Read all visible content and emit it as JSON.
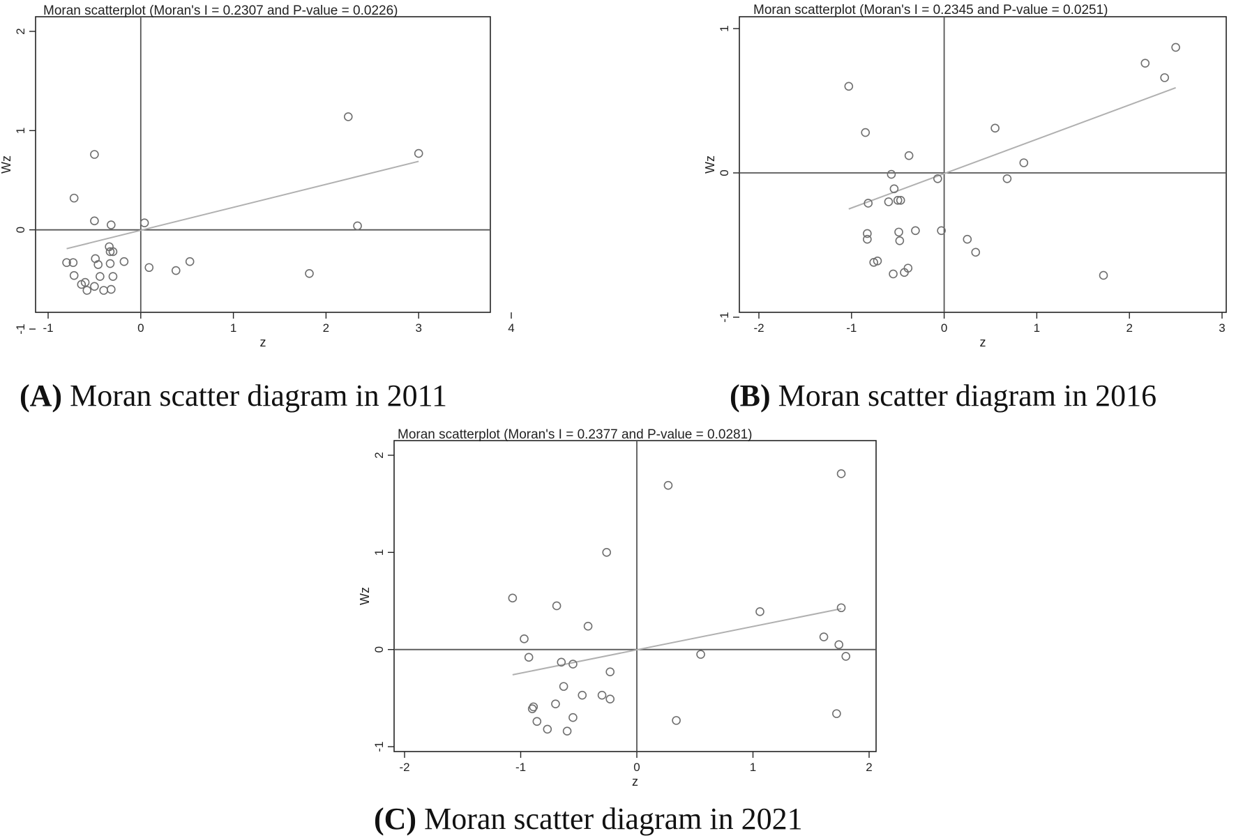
{
  "chart_data": [
    {
      "type": "scatter",
      "title": "Moran scatterplot (Moran's I = 0.2307 and P-value = 0.0226)",
      "xlabel": "z",
      "ylabel": "Wz",
      "xlim": [
        -1,
        4
      ],
      "ylim": [
        -1,
        2
      ],
      "xticks": [
        -1,
        0,
        1,
        2,
        3,
        4
      ],
      "yticks": [
        -1,
        0,
        1,
        2
      ],
      "xtick_labels": [
        "-1",
        "0",
        "1",
        "2",
        "3",
        "4"
      ],
      "ytick_labels": [
        "-1",
        "0",
        "1",
        "2"
      ],
      "grid": false,
      "fit_line": {
        "x": [
          -0.8,
          3.0
        ],
        "y": [
          -0.19,
          0.69
        ]
      },
      "points": [
        {
          "x": -0.8,
          "y": -0.33
        },
        {
          "x": -0.73,
          "y": -0.33
        },
        {
          "x": -0.72,
          "y": 0.32
        },
        {
          "x": -0.72,
          "y": -0.46
        },
        {
          "x": -0.64,
          "y": -0.55
        },
        {
          "x": -0.6,
          "y": -0.53
        },
        {
          "x": -0.58,
          "y": -0.61
        },
        {
          "x": -0.5,
          "y": 0.76
        },
        {
          "x": -0.5,
          "y": 0.09
        },
        {
          "x": -0.49,
          "y": -0.29
        },
        {
          "x": -0.5,
          "y": -0.57
        },
        {
          "x": -0.46,
          "y": -0.35
        },
        {
          "x": -0.44,
          "y": -0.47
        },
        {
          "x": -0.4,
          "y": -0.61
        },
        {
          "x": -0.34,
          "y": -0.17
        },
        {
          "x": -0.32,
          "y": 0.05
        },
        {
          "x": -0.33,
          "y": -0.22
        },
        {
          "x": -0.3,
          "y": -0.22
        },
        {
          "x": -0.33,
          "y": -0.34
        },
        {
          "x": -0.3,
          "y": -0.47
        },
        {
          "x": -0.32,
          "y": -0.6
        },
        {
          "x": -0.18,
          "y": -0.32
        },
        {
          "x": 0.04,
          "y": 0.07
        },
        {
          "x": 0.09,
          "y": -0.38
        },
        {
          "x": 0.38,
          "y": -0.41
        },
        {
          "x": 0.53,
          "y": -0.32
        },
        {
          "x": 1.82,
          "y": -0.44
        },
        {
          "x": 2.24,
          "y": 1.14
        },
        {
          "x": 2.34,
          "y": 0.04
        },
        {
          "x": 3.0,
          "y": 0.77
        }
      ]
    },
    {
      "type": "scatter",
      "title": "Moran scatterplot (Moran's I = 0.2345 and P-value = 0.0251)",
      "xlabel": "z",
      "ylabel": "Wz",
      "xlim": [
        -2,
        3
      ],
      "ylim": [
        -1,
        1
      ],
      "xticks": [
        -2,
        -1,
        0,
        1,
        2,
        3
      ],
      "yticks": [
        -1,
        0,
        1
      ],
      "xtick_labels": [
        "-2",
        "-1",
        "0",
        "1",
        "2",
        "3"
      ],
      "ytick_labels": [
        "-1",
        "0",
        "1"
      ],
      "grid": false,
      "fit_line": {
        "x": [
          -1.03,
          2.5
        ],
        "y": [
          -0.25,
          0.59
        ]
      },
      "points": [
        {
          "x": -1.03,
          "y": 0.6
        },
        {
          "x": -0.85,
          "y": 0.28
        },
        {
          "x": -0.82,
          "y": -0.21
        },
        {
          "x": -0.83,
          "y": -0.42
        },
        {
          "x": -0.83,
          "y": -0.46
        },
        {
          "x": -0.76,
          "y": -0.62
        },
        {
          "x": -0.72,
          "y": -0.61
        },
        {
          "x": -0.6,
          "y": -0.2
        },
        {
          "x": -0.57,
          "y": -0.01
        },
        {
          "x": -0.54,
          "y": -0.11
        },
        {
          "x": -0.55,
          "y": -0.7
        },
        {
          "x": -0.5,
          "y": -0.19
        },
        {
          "x": -0.47,
          "y": -0.19
        },
        {
          "x": -0.49,
          "y": -0.41
        },
        {
          "x": -0.48,
          "y": -0.47
        },
        {
          "x": -0.43,
          "y": -0.69
        },
        {
          "x": -0.39,
          "y": -0.66
        },
        {
          "x": -0.38,
          "y": 0.12
        },
        {
          "x": -0.31,
          "y": -0.4
        },
        {
          "x": -0.07,
          "y": -0.04
        },
        {
          "x": -0.03,
          "y": -0.4
        },
        {
          "x": 0.25,
          "y": -0.46
        },
        {
          "x": 0.34,
          "y": -0.55
        },
        {
          "x": 0.55,
          "y": 0.31
        },
        {
          "x": 0.68,
          "y": -0.04
        },
        {
          "x": 0.86,
          "y": 0.07
        },
        {
          "x": 1.72,
          "y": -0.71
        },
        {
          "x": 2.17,
          "y": 0.76
        },
        {
          "x": 2.38,
          "y": 0.66
        },
        {
          "x": 2.5,
          "y": 0.87
        }
      ]
    },
    {
      "type": "scatter",
      "title": "Moran scatterplot (Moran's I = 0.2377 and P-value = 0.0281)",
      "xlabel": "z",
      "ylabel": "Wz",
      "xlim": [
        -2,
        2
      ],
      "ylim": [
        -1,
        2
      ],
      "xticks": [
        -2,
        -1,
        0,
        1,
        2
      ],
      "yticks": [
        -1,
        0,
        1,
        2
      ],
      "xtick_labels": [
        "-2",
        "-1",
        "0",
        "1",
        "2"
      ],
      "ytick_labels": [
        "-1",
        "0",
        "1",
        "2"
      ],
      "grid": false,
      "fit_line": {
        "x": [
          -1.07,
          1.76
        ],
        "y": [
          -0.26,
          0.42
        ]
      },
      "points": [
        {
          "x": -1.07,
          "y": 0.53
        },
        {
          "x": -0.97,
          "y": 0.11
        },
        {
          "x": -0.93,
          "y": -0.08
        },
        {
          "x": -0.9,
          "y": -0.61
        },
        {
          "x": -0.89,
          "y": -0.59
        },
        {
          "x": -0.86,
          "y": -0.74
        },
        {
          "x": -0.77,
          "y": -0.82
        },
        {
          "x": -0.69,
          "y": 0.45
        },
        {
          "x": -0.7,
          "y": -0.56
        },
        {
          "x": -0.65,
          "y": -0.13
        },
        {
          "x": -0.63,
          "y": -0.38
        },
        {
          "x": -0.6,
          "y": -0.84
        },
        {
          "x": -0.55,
          "y": -0.15
        },
        {
          "x": -0.55,
          "y": -0.7
        },
        {
          "x": -0.47,
          "y": -0.47
        },
        {
          "x": -0.42,
          "y": 0.24
        },
        {
          "x": -0.3,
          "y": -0.47
        },
        {
          "x": -0.26,
          "y": 1.0
        },
        {
          "x": -0.23,
          "y": -0.23
        },
        {
          "x": -0.23,
          "y": -0.51
        },
        {
          "x": 0.27,
          "y": 1.69
        },
        {
          "x": 0.34,
          "y": -0.73
        },
        {
          "x": 0.55,
          "y": -0.05
        },
        {
          "x": 1.06,
          "y": 0.39
        },
        {
          "x": 1.61,
          "y": 0.13
        },
        {
          "x": 1.72,
          "y": -0.66
        },
        {
          "x": 1.74,
          "y": 0.05
        },
        {
          "x": 1.76,
          "y": 0.43
        },
        {
          "x": 1.76,
          "y": 1.81
        },
        {
          "x": 1.8,
          "y": -0.07
        }
      ]
    }
  ],
  "captions": [
    {
      "letter": "(A)",
      "text": " Moran scatter diagram in 2011"
    },
    {
      "letter": "(B)",
      "text": " Moran scatter diagram in 2016"
    },
    {
      "letter": "(C)",
      "text": " Moran scatter diagram in 2021"
    }
  ],
  "colors": {
    "frame": "#222222",
    "axis_cross": "#555555",
    "fit_line": "#b0b0b0",
    "marker": "#6e6e6e",
    "background": "#ffffff"
  }
}
